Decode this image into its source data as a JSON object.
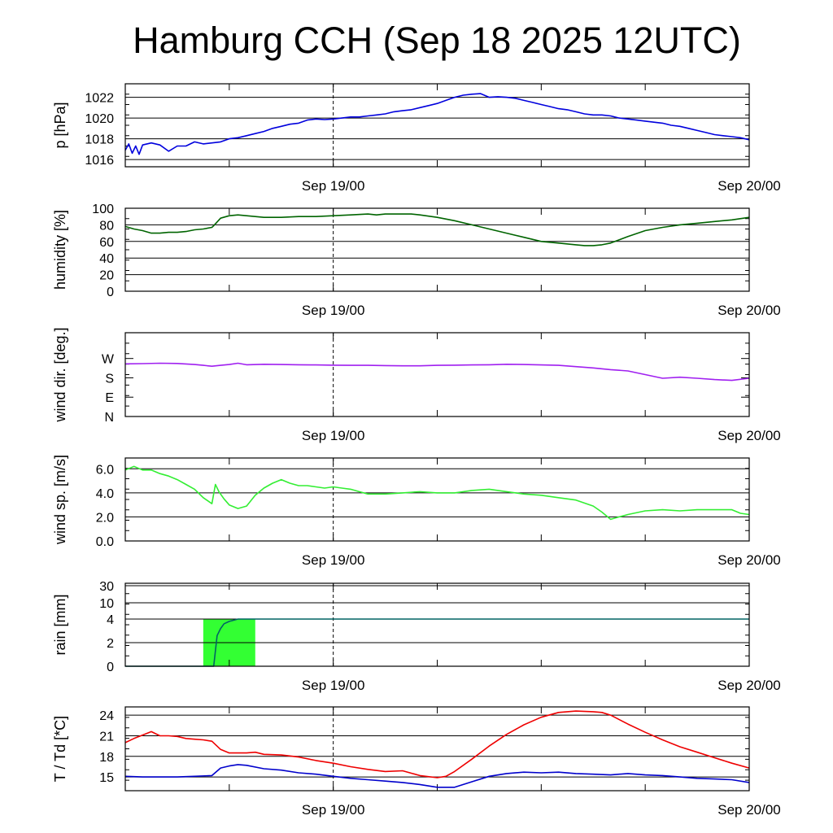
{
  "title": "Hamburg CCH (Sep 18 2025 12UTC)",
  "chart_data": [
    {
      "type": "line",
      "id": "pressure",
      "ylabel": "p [hPa]",
      "ylim": [
        1015.3,
        1023.3
      ],
      "ytick_values": [
        1016,
        1018,
        1020,
        1022
      ],
      "ytick_labels": [
        "1016",
        "1018",
        "1020",
        "1022"
      ],
      "grid": true,
      "xlim": [
        0,
        36
      ],
      "xtick_labels": [
        {
          "x": 12,
          "label": "Sep 19/00"
        },
        {
          "x": 36,
          "label": "Sep 20/00"
        }
      ],
      "series": [
        {
          "color": "#0000dd",
          "x": [
            0,
            0.2,
            0.4,
            0.6,
            0.8,
            1,
            1.5,
            2,
            2.5,
            3,
            3.5,
            4,
            4.5,
            5,
            5.5,
            6,
            6.5,
            7,
            7.5,
            8,
            8.5,
            9,
            9.5,
            10,
            10.5,
            11,
            11.5,
            12,
            12.5,
            13,
            13.5,
            14,
            14.5,
            15,
            15.5,
            16,
            16.5,
            17,
            17.5,
            18,
            18.5,
            19,
            19.5,
            20,
            20.5,
            21,
            21.5,
            22,
            22.5,
            23,
            23.5,
            24,
            24.5,
            25,
            25.5,
            26,
            26.5,
            27,
            27.5,
            28,
            28.5,
            29,
            29.5,
            30,
            30.5,
            31,
            31.5,
            32,
            32.5,
            33,
            33.5,
            34,
            34.5,
            35,
            35.5,
            36
          ],
          "y": [
            1016.9,
            1017.5,
            1016.6,
            1017.3,
            1016.5,
            1017.4,
            1017.6,
            1017.4,
            1016.8,
            1017.3,
            1017.3,
            1017.7,
            1017.5,
            1017.6,
            1017.7,
            1018.0,
            1018.1,
            1018.3,
            1018.5,
            1018.7,
            1019.0,
            1019.2,
            1019.4,
            1019.5,
            1019.8,
            1019.9,
            1019.85,
            1019.9,
            1020.0,
            1020.1,
            1020.1,
            1020.2,
            1020.3,
            1020.4,
            1020.6,
            1020.7,
            1020.8,
            1021.0,
            1021.2,
            1021.4,
            1021.7,
            1022.0,
            1022.2,
            1022.3,
            1022.35,
            1022.0,
            1022.05,
            1022.0,
            1021.9,
            1021.7,
            1021.5,
            1021.3,
            1021.1,
            1020.9,
            1020.8,
            1020.6,
            1020.4,
            1020.3,
            1020.3,
            1020.2,
            1020.0,
            1019.9,
            1019.8,
            1019.7,
            1019.6,
            1019.5,
            1019.3,
            1019.2,
            1019.0,
            1018.8,
            1018.6,
            1018.4,
            1018.3,
            1018.2,
            1018.1,
            1017.9
          ]
        }
      ]
    },
    {
      "type": "line",
      "id": "humidity",
      "ylabel": "humidity [%]",
      "ylim": [
        0,
        100
      ],
      "ytick_values": [
        0,
        20,
        40,
        60,
        80,
        100
      ],
      "ytick_labels": [
        "0",
        "20",
        "40",
        "60",
        "80",
        "100"
      ],
      "grid": true,
      "xlim": [
        0,
        36
      ],
      "xtick_labels": [
        {
          "x": 12,
          "label": "Sep 19/00"
        },
        {
          "x": 36,
          "label": "Sep 20/00"
        }
      ],
      "series": [
        {
          "color": "#006400",
          "x": [
            0,
            0.5,
            1,
            1.5,
            2,
            2.5,
            3,
            3.5,
            4,
            4.5,
            5,
            5.1,
            5.5,
            6,
            6.5,
            7,
            7.5,
            8,
            9,
            10,
            11,
            12,
            13,
            14,
            14.5,
            15,
            15.5,
            16,
            16.5,
            17,
            18,
            19,
            20,
            21,
            22,
            23,
            24,
            25,
            26,
            26.5,
            27,
            27.5,
            28,
            29,
            30,
            31,
            32,
            33,
            34,
            35,
            36
          ],
          "y": [
            78,
            75,
            73,
            70,
            70,
            71,
            71,
            72,
            74,
            75,
            77,
            79,
            88,
            91,
            92,
            91,
            90,
            89,
            89,
            90,
            90,
            91,
            92,
            93,
            92,
            93,
            93,
            93,
            93,
            92,
            89,
            85,
            80,
            75,
            70,
            65,
            60,
            58,
            56,
            55,
            55,
            56,
            58,
            66,
            73,
            77,
            80,
            82,
            84,
            86,
            89
          ]
        }
      ]
    },
    {
      "type": "line",
      "id": "wind-direction",
      "ylabel": "wind dir. [deg.]",
      "ylim": [
        0,
        390
      ],
      "ytick_values": [
        0,
        90,
        180,
        270
      ],
      "ytick_labels": [
        "N",
        "E",
        "S",
        "W"
      ],
      "grid": false,
      "xlim": [
        0,
        36
      ],
      "xtick_labels": [
        {
          "x": 12,
          "label": "Sep 19/00"
        },
        {
          "x": 36,
          "label": "Sep 20/00"
        }
      ],
      "series": [
        {
          "color": "#a020f0",
          "x": [
            0,
            1,
            2,
            3,
            4,
            4.5,
            5,
            5.5,
            6,
            6.5,
            7,
            8,
            9,
            10,
            11,
            12,
            13,
            14,
            15,
            16,
            17,
            18,
            19,
            20,
            21,
            22,
            23,
            24,
            25,
            26,
            27,
            28,
            29,
            30,
            31,
            32,
            33,
            34,
            35,
            36
          ],
          "y": [
            245,
            246,
            248,
            247,
            242,
            238,
            234,
            238,
            242,
            248,
            241,
            243,
            242,
            241,
            240,
            239,
            238,
            238,
            237,
            236,
            236,
            238,
            239,
            240,
            241,
            243,
            242,
            240,
            238,
            232,
            226,
            218,
            212,
            195,
            178,
            183,
            178,
            172,
            168,
            178
          ]
        }
      ]
    },
    {
      "type": "line",
      "id": "wind-speed",
      "ylabel": "wind sp. [m/s]",
      "ylim": [
        0,
        6.9
      ],
      "ytick_values": [
        0,
        2,
        4,
        6
      ],
      "ytick_labels": [
        "0.0",
        "2.0",
        "4.0",
        "6.0"
      ],
      "grid": true,
      "xlim": [
        0,
        36
      ],
      "xtick_labels": [
        {
          "x": 12,
          "label": "Sep 19/00"
        },
        {
          "x": 36,
          "label": "Sep 20/00"
        }
      ],
      "series": [
        {
          "color": "#33ee33",
          "x": [
            0,
            0.5,
            1,
            1.5,
            2,
            2.5,
            3,
            3.5,
            4,
            4.5,
            5,
            5.2,
            5.4,
            5.7,
            6,
            6.5,
            7,
            7.5,
            8,
            8.5,
            9,
            9.5,
            10,
            10.5,
            11,
            11.5,
            12,
            12.5,
            13,
            13.5,
            14,
            15,
            16,
            17,
            18,
            19,
            20,
            21,
            22,
            23,
            24,
            25,
            26,
            27,
            27.5,
            28,
            28.5,
            29,
            30,
            31,
            32,
            33,
            34,
            35,
            35.5,
            36
          ],
          "y": [
            5.9,
            6.2,
            5.9,
            5.9,
            5.6,
            5.4,
            5.1,
            4.7,
            4.3,
            3.6,
            3.1,
            4.7,
            4.1,
            3.5,
            3.0,
            2.7,
            2.9,
            3.8,
            4.4,
            4.8,
            5.1,
            4.8,
            4.6,
            4.6,
            4.5,
            4.4,
            4.5,
            4.4,
            4.3,
            4.1,
            3.9,
            3.9,
            4.0,
            4.1,
            4.0,
            4.0,
            4.2,
            4.3,
            4.1,
            3.9,
            3.8,
            3.6,
            3.4,
            2.9,
            2.4,
            1.8,
            2.0,
            2.2,
            2.5,
            2.6,
            2.5,
            2.6,
            2.6,
            2.6,
            2.3,
            2.2
          ]
        }
      ]
    },
    {
      "type": "bar",
      "id": "rain",
      "ylabel": "rain [mm]",
      "ytick_labels": [
        "0",
        "2",
        "4",
        "10",
        "30"
      ],
      "grid": true,
      "xlim": [
        0,
        36
      ],
      "xtick_labels": [
        {
          "x": 12,
          "label": "Sep 19/00"
        },
        {
          "x": 36,
          "label": "Sep 20/00"
        }
      ],
      "bars": [
        {
          "x0": 4.5,
          "x1": 7.5,
          "value": 4,
          "color": "#33ff33"
        }
      ],
      "series": [
        {
          "color": "#006464",
          "x": [
            0,
            5,
            5.1,
            5.3,
            5.5,
            5.7,
            6,
            6.5,
            36
          ],
          "y": [
            0,
            0,
            0,
            2.6,
            3.2,
            3.6,
            3.8,
            4,
            4
          ]
        }
      ]
    },
    {
      "type": "line",
      "id": "temperature",
      "ylabel": "T / Td [*C]",
      "ylim": [
        13,
        25.2
      ],
      "ytick_values": [
        15,
        18,
        21,
        24
      ],
      "ytick_labels": [
        "15",
        "18",
        "21",
        "24"
      ],
      "grid": true,
      "xlim": [
        0,
        36
      ],
      "xtick_labels": [
        {
          "x": 12,
          "label": "Sep 19/00"
        },
        {
          "x": 36,
          "label": "Sep 20/00"
        }
      ],
      "series": [
        {
          "color": "#ee0000",
          "x": [
            0,
            0.5,
            1,
            1.5,
            2,
            2.5,
            3,
            3.5,
            4,
            4.5,
            5,
            5.5,
            6,
            7,
            7.5,
            8,
            9,
            10,
            11,
            12,
            13,
            14,
            15,
            16,
            17,
            18,
            18.5,
            19,
            20,
            21,
            22,
            23,
            24,
            25,
            26,
            27,
            27.5,
            28,
            29,
            30,
            31,
            32,
            33,
            34,
            35,
            36
          ],
          "y": [
            20.0,
            20.6,
            21.1,
            21.6,
            21.0,
            21.0,
            20.9,
            20.6,
            20.5,
            20.4,
            20.2,
            19.0,
            18.5,
            18.5,
            18.6,
            18.3,
            18.2,
            17.9,
            17.4,
            17.0,
            16.5,
            16.1,
            15.8,
            15.9,
            15.2,
            14.9,
            15.1,
            15.8,
            17.6,
            19.5,
            21.2,
            22.6,
            23.7,
            24.4,
            24.6,
            24.5,
            24.4,
            24.0,
            22.7,
            21.5,
            20.4,
            19.4,
            18.6,
            17.8,
            17.0,
            16.3
          ]
        },
        {
          "color": "#0000cc",
          "x": [
            0,
            1,
            2,
            3,
            4,
            5,
            5.5,
            6,
            6.5,
            7,
            8,
            9,
            10,
            11,
            12,
            13,
            14,
            15,
            16,
            17,
            18,
            19,
            20,
            21,
            22,
            23,
            24,
            25,
            26,
            27,
            28,
            29,
            30,
            31,
            32,
            33,
            34,
            35,
            36
          ],
          "y": [
            15.1,
            15.0,
            15.0,
            15.0,
            15.1,
            15.2,
            16.3,
            16.6,
            16.8,
            16.7,
            16.2,
            16.0,
            15.6,
            15.4,
            15.1,
            14.8,
            14.6,
            14.4,
            14.2,
            13.9,
            13.5,
            13.5,
            14.3,
            15.1,
            15.5,
            15.7,
            15.6,
            15.7,
            15.5,
            15.4,
            15.3,
            15.5,
            15.3,
            15.2,
            15.0,
            14.8,
            14.7,
            14.6,
            14.2
          ]
        }
      ]
    }
  ]
}
